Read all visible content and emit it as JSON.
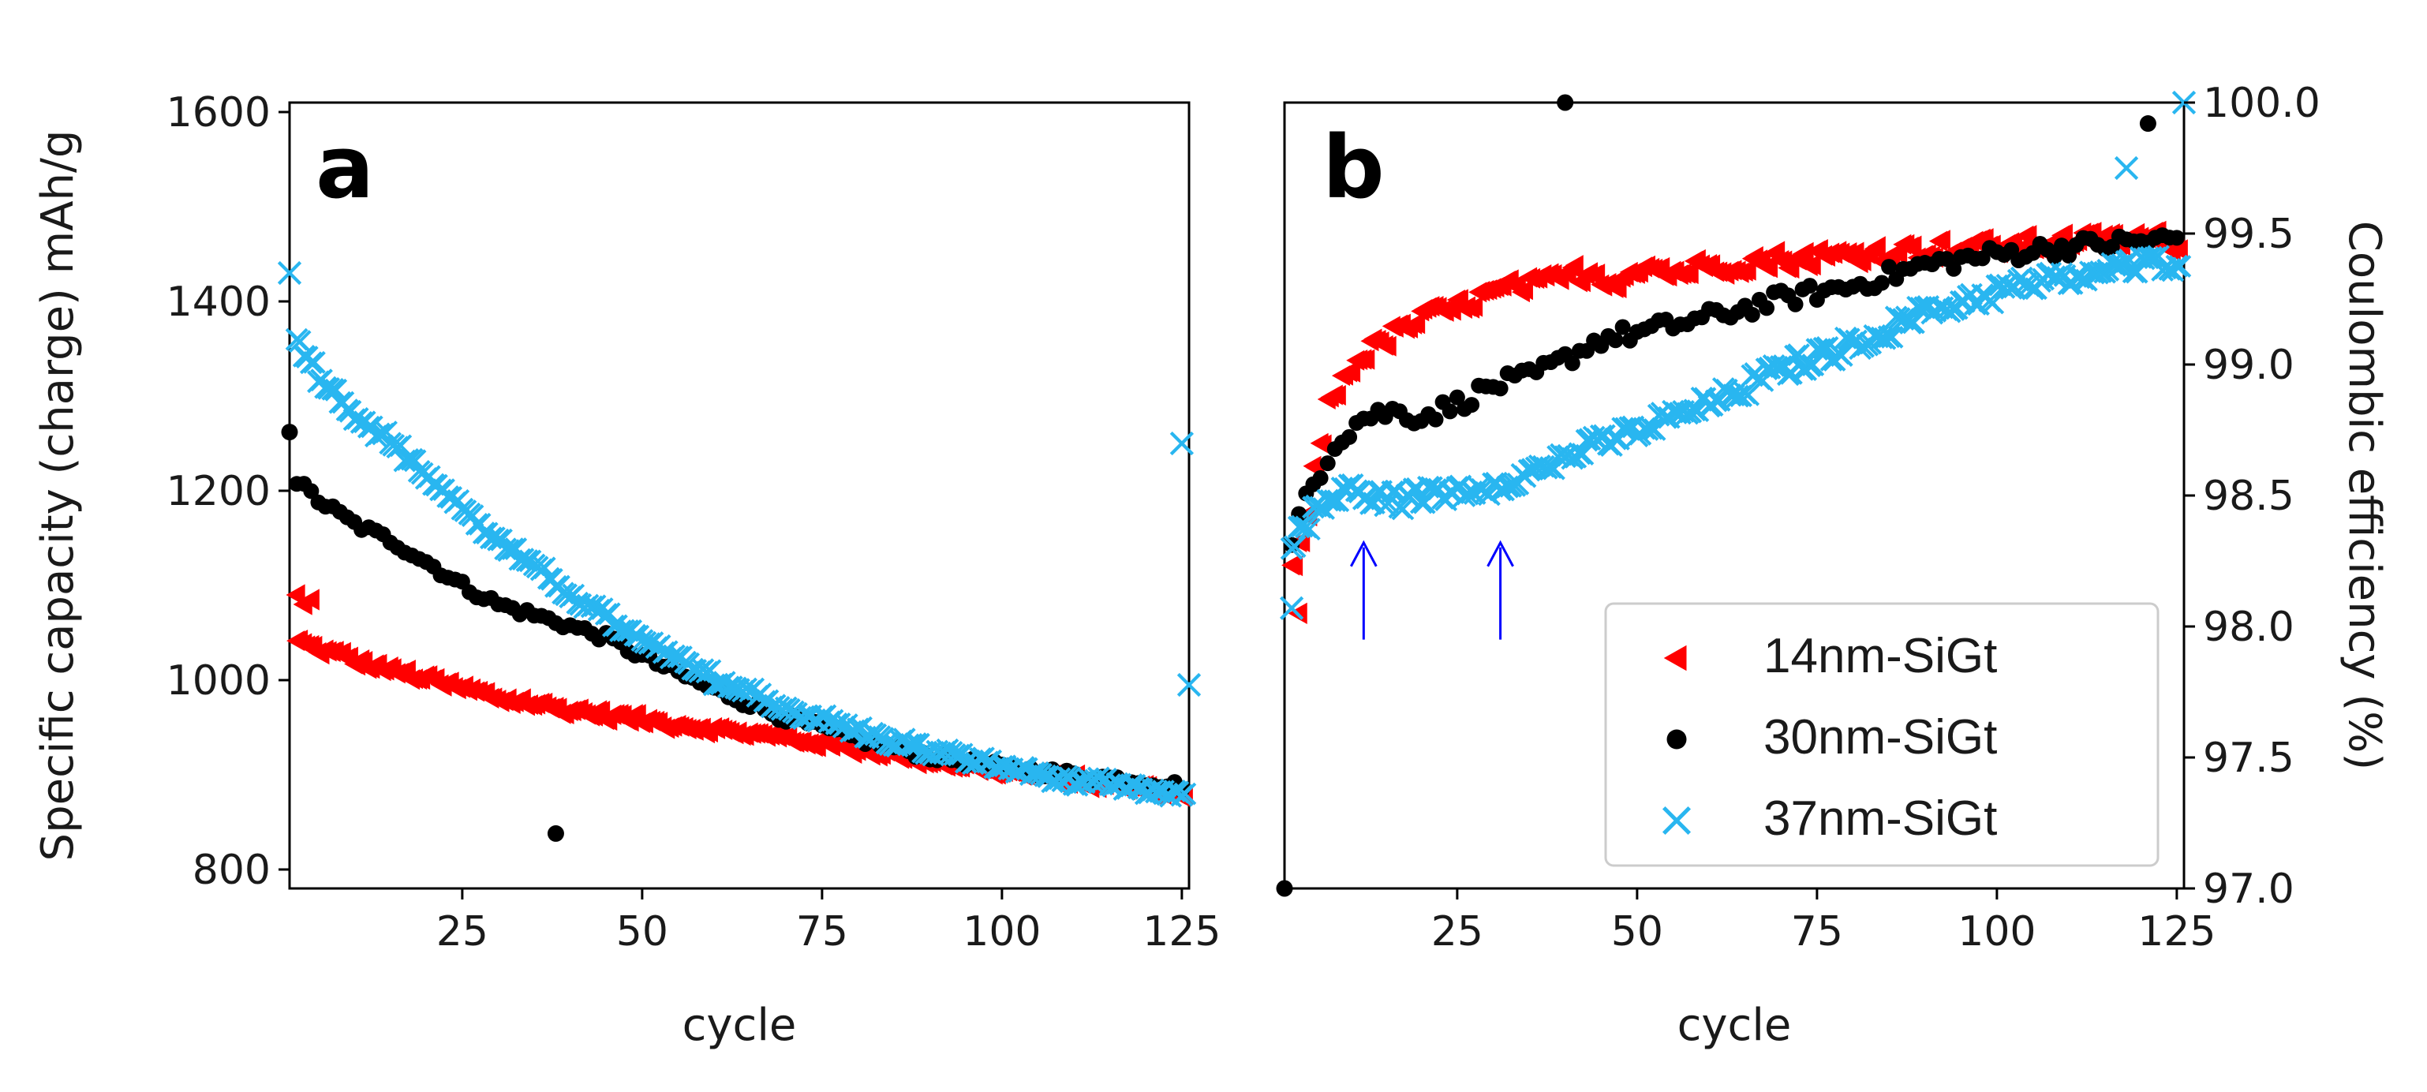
{
  "chart_data": [
    {
      "type": "scatter",
      "panel_label": "a",
      "xlabel": "cycle",
      "ylabel": "Specific capacity (charge) mAh/g",
      "xlim": [
        1,
        126
      ],
      "ylim": [
        780,
        1610
      ],
      "xticks": [
        "25",
        "50",
        "75",
        "100",
        "125"
      ],
      "yticks": [
        "800",
        "1000",
        "1200",
        "1400",
        "1600"
      ],
      "series": [
        {
          "name": "14nm-SiGt",
          "color": "#ff0000",
          "marker": "triangle-left",
          "outliers": [
            [
              2,
              1090
            ],
            [
              3,
              1080
            ],
            [
              4,
              1085
            ]
          ],
          "curve": [
            [
              2,
              1040
            ],
            [
              10,
              1020
            ],
            [
              20,
              1000
            ],
            [
              30,
              980
            ],
            [
              40,
              968
            ],
            [
              50,
              958
            ],
            [
              60,
              948
            ],
            [
              70,
              938
            ],
            [
              80,
              927
            ],
            [
              90,
              915
            ],
            [
              100,
              903
            ],
            [
              110,
              893
            ],
            [
              120,
              885
            ],
            [
              125,
              880
            ]
          ]
        },
        {
          "name": "30nm-SiGt",
          "color": "#000000",
          "marker": "circle",
          "outliers": [
            [
              1,
              1262
            ],
            [
              38,
              838
            ]
          ],
          "curve": [
            [
              2,
              1210
            ],
            [
              5,
              1190
            ],
            [
              10,
              1165
            ],
            [
              15,
              1148
            ],
            [
              20,
              1125
            ],
            [
              25,
              1100
            ],
            [
              30,
              1080
            ],
            [
              38,
              1062
            ],
            [
              45,
              1045
            ],
            [
              50,
              1025
            ],
            [
              60,
              990
            ],
            [
              70,
              960
            ],
            [
              80,
              938
            ],
            [
              90,
              920
            ],
            [
              100,
              908
            ],
            [
              110,
              900
            ],
            [
              120,
              893
            ],
            [
              125,
              888
            ]
          ]
        },
        {
          "name": "37nm-SiGt",
          "color": "#29b6f0",
          "marker": "x",
          "outliers": [
            [
              1,
              1430
            ],
            [
              125,
              1250
            ],
            [
              126,
              995
            ]
          ],
          "curve": [
            [
              2,
              1360
            ],
            [
              5,
              1320
            ],
            [
              10,
              1280
            ],
            [
              15,
              1250
            ],
            [
              20,
              1215
            ],
            [
              25,
              1180
            ],
            [
              30,
              1145
            ],
            [
              40,
              1090
            ],
            [
              50,
              1040
            ],
            [
              60,
              1000
            ],
            [
              70,
              970
            ],
            [
              80,
              945
            ],
            [
              90,
              925
            ],
            [
              100,
              908
            ],
            [
              110,
              893
            ],
            [
              120,
              883
            ],
            [
              125,
              878
            ]
          ]
        }
      ]
    },
    {
      "type": "scatter",
      "panel_label": "b",
      "xlabel": "cycle",
      "ylabel": "Coulombic efficiency (%)",
      "xlim": [
        1,
        126
      ],
      "ylim": [
        97.0,
        100.0
      ],
      "xticks": [
        "25",
        "50",
        "75",
        "100",
        "125"
      ],
      "yticks": [
        "97.0",
        "97.5",
        "98.0",
        "98.5",
        "99.0",
        "99.5",
        "100.0"
      ],
      "annotations": [
        {
          "type": "arrow",
          "color": "#0000ff",
          "x": 12,
          "y_from": 97.95,
          "y_to": 98.32
        },
        {
          "type": "arrow",
          "color": "#0000ff",
          "x": 31,
          "y_from": 97.95,
          "y_to": 98.32
        }
      ],
      "series": [
        {
          "name": "14nm-SiGt",
          "color": "#ff0000",
          "marker": "triangle-left",
          "outliers": [
            [
              3,
              98.05
            ]
          ],
          "curve": [
            [
              2,
              98.2
            ],
            [
              4,
              98.45
            ],
            [
              7,
              98.85
            ],
            [
              10,
              99.0
            ],
            [
              15,
              99.1
            ],
            [
              20,
              99.18
            ],
            [
              25,
              99.22
            ],
            [
              30,
              99.28
            ],
            [
              35,
              99.3
            ],
            [
              42,
              99.35
            ],
            [
              47,
              99.32
            ],
            [
              50,
              99.38
            ],
            [
              55,
              99.35
            ],
            [
              60,
              99.38
            ],
            [
              70,
              99.4
            ],
            [
              80,
              99.42
            ],
            [
              90,
              99.44
            ],
            [
              100,
              99.45
            ],
            [
              110,
              99.47
            ],
            [
              120,
              99.48
            ],
            [
              125,
              99.47
            ]
          ]
        },
        {
          "name": "30nm-SiGt",
          "color": "#000000",
          "marker": "circle",
          "outliers": [
            [
              1,
              97.0
            ],
            [
              40,
              100.0
            ],
            [
              121,
              99.92
            ]
          ],
          "curve": [
            [
              2,
              98.3
            ],
            [
              4,
              98.5
            ],
            [
              8,
              98.7
            ],
            [
              12,
              98.8
            ],
            [
              16,
              98.82
            ],
            [
              20,
              98.8
            ],
            [
              25,
              98.85
            ],
            [
              30,
              98.92
            ],
            [
              35,
              98.95
            ],
            [
              40,
              99.02
            ],
            [
              45,
              99.1
            ],
            [
              50,
              99.12
            ],
            [
              60,
              99.18
            ],
            [
              70,
              99.25
            ],
            [
              80,
              99.3
            ],
            [
              90,
              99.38
            ],
            [
              100,
              99.42
            ],
            [
              110,
              99.45
            ],
            [
              120,
              99.47
            ],
            [
              125,
              99.48
            ]
          ]
        },
        {
          "name": "37nm-SiGt",
          "color": "#29b6f0",
          "marker": "x",
          "outliers": [
            [
              2,
              98.07
            ],
            [
              118,
              99.75
            ],
            [
              126,
              100.0
            ]
          ],
          "curve": [
            [
              2,
              98.3
            ],
            [
              5,
              98.45
            ],
            [
              10,
              98.52
            ],
            [
              15,
              98.48
            ],
            [
              20,
              98.5
            ],
            [
              25,
              98.52
            ],
            [
              30,
              98.55
            ],
            [
              35,
              98.58
            ],
            [
              40,
              98.65
            ],
            [
              45,
              98.7
            ],
            [
              50,
              98.75
            ],
            [
              60,
              98.85
            ],
            [
              70,
              98.98
            ],
            [
              80,
              99.08
            ],
            [
              90,
              99.2
            ],
            [
              100,
              99.28
            ],
            [
              110,
              99.33
            ],
            [
              120,
              99.38
            ],
            [
              125,
              99.4
            ]
          ]
        }
      ]
    }
  ],
  "legend": {
    "entries": [
      {
        "label": "14nm-SiGt",
        "color": "#ff0000",
        "marker": "triangle-left"
      },
      {
        "label": "30nm-SiGt",
        "color": "#000000",
        "marker": "circle"
      },
      {
        "label": "37nm-SiGt",
        "color": "#29b6f0",
        "marker": "x"
      }
    ],
    "placement": "lower-right"
  }
}
